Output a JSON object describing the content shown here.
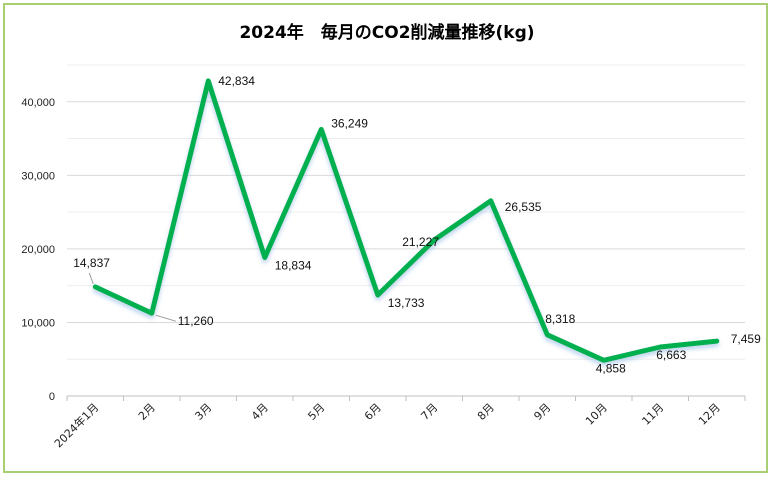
{
  "chart_data": {
    "type": "line",
    "title": "2024年　毎月のCO2削減量推移(kg)",
    "categories": [
      "2024年1月",
      "2月",
      "3月",
      "4月",
      "5月",
      "6月",
      "7月",
      "8月",
      "9月",
      "10月",
      "11月",
      "12月"
    ],
    "series": [
      {
        "values": [
          14837,
          11260,
          42834,
          18834,
          36249,
          13733,
          21227,
          26535,
          8318,
          4858,
          6663,
          7459
        ]
      }
    ],
    "data_labels": [
      "14,837",
      "11,260",
      "42,834",
      "18,834",
      "36,249",
      "13,733",
      "21,227",
      "26,535",
      "8,318",
      "4,858",
      "6,663",
      "7,459"
    ],
    "y_ticks": [
      "0",
      "10,000",
      "20,000",
      "30,000",
      "40,000"
    ],
    "ylim": [
      0,
      45000
    ],
    "xlabel": "",
    "ylabel": "",
    "line_color": "#00b050",
    "grid": true,
    "legend": "none"
  }
}
